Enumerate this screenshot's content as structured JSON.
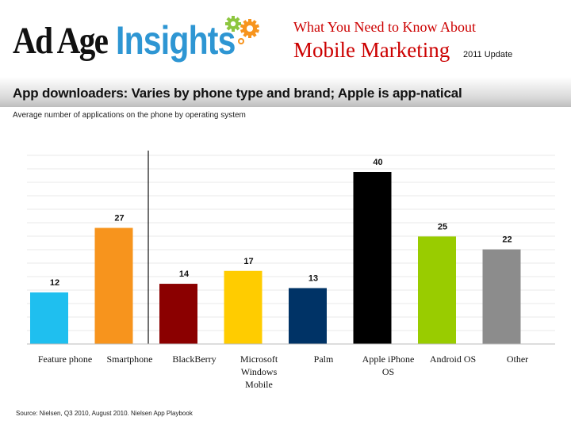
{
  "header": {
    "logo_left": "Ad Age",
    "logo_right": "Insights",
    "top_line": "What You Need to Know About",
    "main_line": "Mobile Marketing",
    "update": "2011 Update",
    "gear_colors": [
      "#8dc63f",
      "#f7941d"
    ]
  },
  "chart_data": {
    "type": "bar",
    "title": "App downloaders: Varies by phone type and brand; Apple is app-natical",
    "subtitle": "Average number of applications on the phone by operating system",
    "categories": [
      "Feature phone",
      "Smartphone",
      "BlackBerry",
      "Microsoft Windows Mobile",
      "Palm",
      "Apple iPhone OS",
      "Android OS",
      "Other"
    ],
    "values": [
      12,
      27,
      14,
      17,
      13,
      40,
      25,
      22
    ],
    "colors": [
      "#1fbfef",
      "#f7941d",
      "#8b0000",
      "#ffcc00",
      "#003366",
      "#000000",
      "#99cc00",
      "#8c8c8c"
    ],
    "ylim": [
      0,
      40
    ],
    "grid": true,
    "legend": "none",
    "source": "Source: Nielsen, Q3 2010, August 2010. Nielsen App Playbook"
  }
}
